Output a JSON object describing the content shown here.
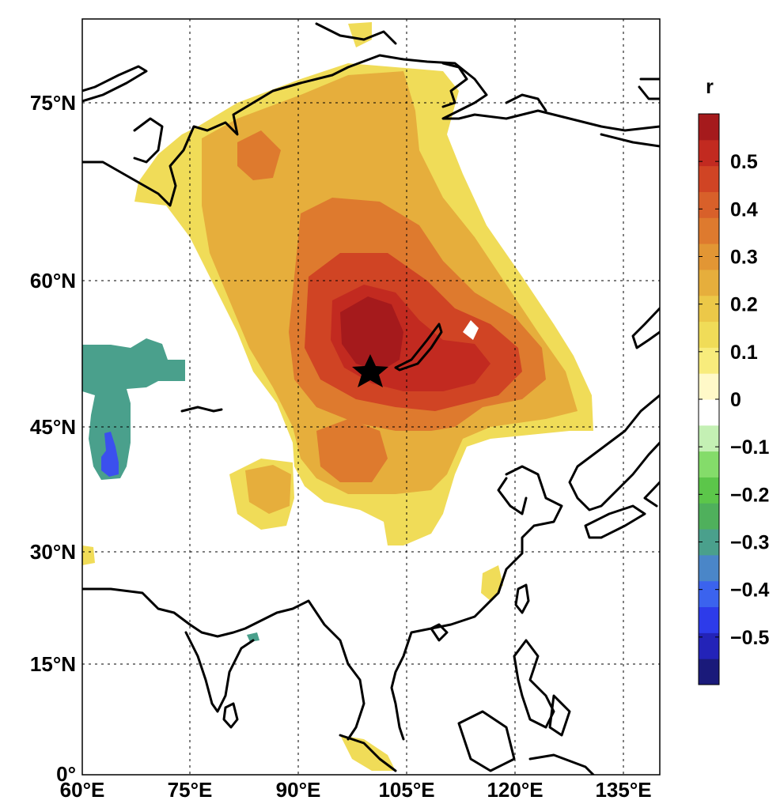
{
  "colorbar": {
    "title": "r",
    "tick_labels": [
      "0.5",
      "0.4",
      "0.3",
      "0.2",
      "0.1",
      "0",
      "−0.1",
      "−0.2",
      "−0.3",
      "−0.4",
      "−0.5"
    ],
    "tick_values": [
      0.5,
      0.4,
      0.3,
      0.2,
      0.1,
      0,
      -0.1,
      -0.2,
      -0.3,
      -0.4,
      -0.5
    ],
    "range": [
      -0.6,
      0.6
    ],
    "colors": [
      "#1a1a7a",
      "#2323b8",
      "#2d3bea",
      "#3b63ee",
      "#4a86c8",
      "#4aa08c",
      "#4fb05c",
      "#5cc64a",
      "#84dc6a",
      "#c4f0b4",
      "#ffffff",
      "#fff9c8",
      "#f8ec7c",
      "#f0dc58",
      "#ecc848",
      "#e6ae3c",
      "#e29634",
      "#de7a2e",
      "#d8602a",
      "#d04424",
      "#c22a20",
      "#a51a1c"
    ]
  },
  "axes": {
    "x_tick_labels": [
      "60°E",
      "75°E",
      "90°E",
      "105°E",
      "120°E",
      "135°E"
    ],
    "x_tick_values": [
      60,
      75,
      90,
      105,
      120,
      135
    ],
    "y_tick_labels": [
      "0°",
      "15°N",
      "30°N",
      "45°N",
      "60°N",
      "75°N"
    ],
    "y_tick_values": [
      0,
      15,
      30,
      45,
      60,
      75
    ],
    "lon_range": [
      60,
      140
    ],
    "lat_range": [
      0,
      85
    ]
  },
  "marker": {
    "type": "star",
    "lon": 100,
    "lat": 51
  },
  "correlation_regions": [
    {
      "level": 0.15,
      "color": "#f0dc58",
      "area": "broad band from the Arctic coast (~80°E) to southeast of Lake Baikal (~130°E, 45°N)"
    },
    {
      "level": 0.25,
      "color": "#e6ae3c",
      "area": "central Siberia and Mongolia"
    },
    {
      "level": 0.35,
      "color": "#de7a2e",
      "area": "around Lake Baikal, Taymyr coast, Tibet outlier"
    },
    {
      "level": 0.45,
      "color": "#d04424",
      "area": "southwest of Lake Baikal"
    },
    {
      "level": 0.55,
      "color": "#a51a1c",
      "area": "core near the star (~100°E, 53°N)"
    },
    {
      "level": -0.3,
      "color": "#4aa08c",
      "area": "Kazakhstan / Caspian region"
    },
    {
      "level": -0.45,
      "color": "#3b50ee",
      "area": "small core near 63°E, 42°N"
    }
  ]
}
